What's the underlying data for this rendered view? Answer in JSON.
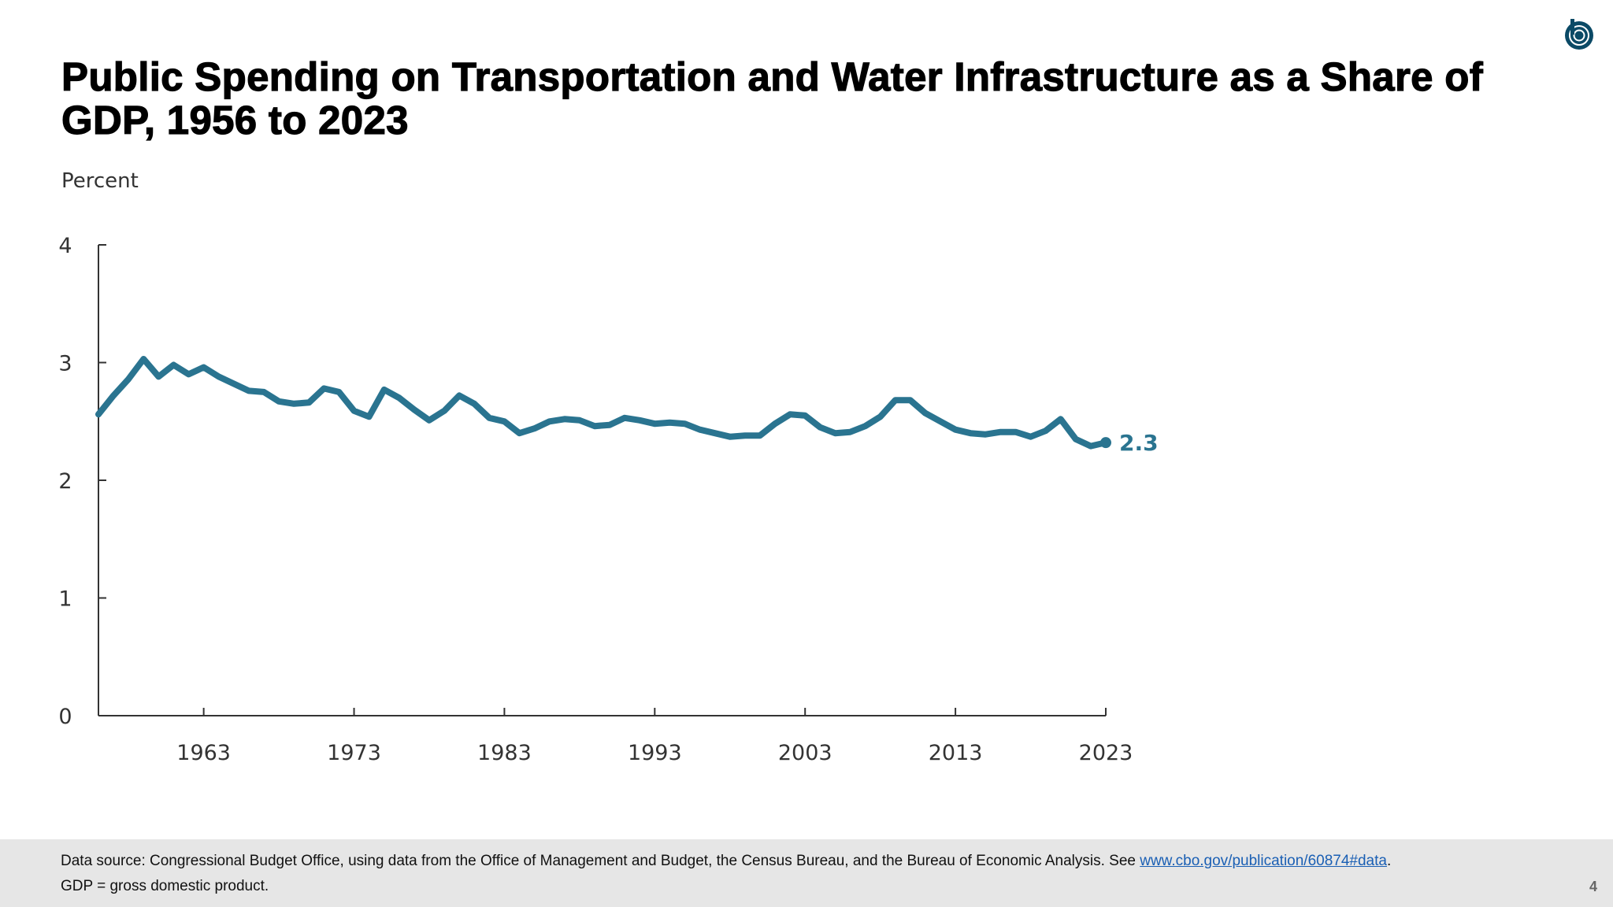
{
  "title": "Public Spending on Transportation and Water Infrastructure as a Share of GDP, 1956 to 2023",
  "logo_alt": "CBO",
  "footer": {
    "source_prefix": "Data source: Congressional Budget Office, using data from the Office of Management and Budget, the Census Bureau, and the Bureau of Economic Analysis. See ",
    "source_link": "www.cbo.gov/publication/60874#data",
    "source_suffix": ".",
    "note": "GDP = gross domestic product.",
    "page_number": "4"
  },
  "colors": {
    "line": "#2a7490",
    "logo": "#0b4a66",
    "footer_bg": "#e6e6e6"
  },
  "chart_data": {
    "type": "line",
    "title": "Public Spending on Transportation and Water Infrastructure as a Share of GDP, 1956 to 2023",
    "ylabel": "Percent",
    "xlabel": "",
    "ylim": [
      0,
      4
    ],
    "xlim": [
      1956,
      2023
    ],
    "yticks": [
      "0",
      "1",
      "2",
      "3",
      "4"
    ],
    "xticks": [
      "1963",
      "1973",
      "1983",
      "1993",
      "2003",
      "2013",
      "2023"
    ],
    "grid": false,
    "end_label": "2.3",
    "x": [
      1956,
      1957,
      1958,
      1959,
      1960,
      1961,
      1962,
      1963,
      1964,
      1965,
      1966,
      1967,
      1968,
      1969,
      1970,
      1971,
      1972,
      1973,
      1974,
      1975,
      1976,
      1977,
      1978,
      1979,
      1980,
      1981,
      1982,
      1983,
      1984,
      1985,
      1986,
      1987,
      1988,
      1989,
      1990,
      1991,
      1992,
      1993,
      1994,
      1995,
      1996,
      1997,
      1998,
      1999,
      2000,
      2001,
      2002,
      2003,
      2004,
      2005,
      2006,
      2007,
      2008,
      2009,
      2010,
      2011,
      2012,
      2013,
      2014,
      2015,
      2016,
      2017,
      2018,
      2019,
      2020,
      2021,
      2022,
      2023
    ],
    "values": [
      2.56,
      2.72,
      2.86,
      3.03,
      2.88,
      2.98,
      2.9,
      2.96,
      2.88,
      2.82,
      2.76,
      2.75,
      2.67,
      2.65,
      2.66,
      2.78,
      2.75,
      2.59,
      2.54,
      2.77,
      2.7,
      2.6,
      2.51,
      2.59,
      2.72,
      2.65,
      2.53,
      2.5,
      2.4,
      2.44,
      2.5,
      2.52,
      2.51,
      2.46,
      2.47,
      2.53,
      2.51,
      2.48,
      2.49,
      2.48,
      2.43,
      2.4,
      2.37,
      2.38,
      2.38,
      2.48,
      2.56,
      2.55,
      2.45,
      2.4,
      2.41,
      2.46,
      2.54,
      2.68,
      2.68,
      2.57,
      2.5,
      2.43,
      2.4,
      2.39,
      2.41,
      2.41,
      2.37,
      2.42,
      2.52,
      2.35,
      2.29,
      2.32
    ]
  }
}
